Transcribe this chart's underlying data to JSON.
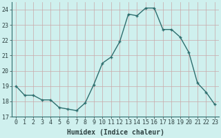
{
  "x": [
    0,
    1,
    2,
    3,
    4,
    5,
    6,
    7,
    8,
    9,
    10,
    11,
    12,
    13,
    14,
    15,
    16,
    17,
    18,
    19,
    20,
    21,
    22,
    23
  ],
  "y": [
    19.0,
    18.4,
    18.4,
    18.1,
    18.1,
    17.6,
    17.5,
    17.4,
    17.9,
    19.1,
    20.5,
    20.9,
    21.9,
    23.7,
    23.6,
    24.1,
    24.1,
    22.7,
    22.7,
    22.2,
    21.2,
    19.2,
    18.6,
    17.8
  ],
  "line_color": "#2d6e6e",
  "marker": "+",
  "marker_size": 3.5,
  "bg_color": "#cff0ee",
  "grid_color": "#c8a8a8",
  "xlabel": "Humidex (Indice chaleur)",
  "ylabel": "",
  "ylim": [
    17,
    24.5
  ],
  "yticks": [
    17,
    18,
    19,
    20,
    21,
    22,
    23,
    24
  ],
  "xlim": [
    -0.5,
    23.5
  ],
  "xticks": [
    0,
    1,
    2,
    3,
    4,
    5,
    6,
    7,
    8,
    9,
    10,
    11,
    12,
    13,
    14,
    15,
    16,
    17,
    18,
    19,
    20,
    21,
    22,
    23
  ],
  "tick_fontsize": 6.0,
  "label_fontsize": 7.0,
  "linewidth": 1.0
}
